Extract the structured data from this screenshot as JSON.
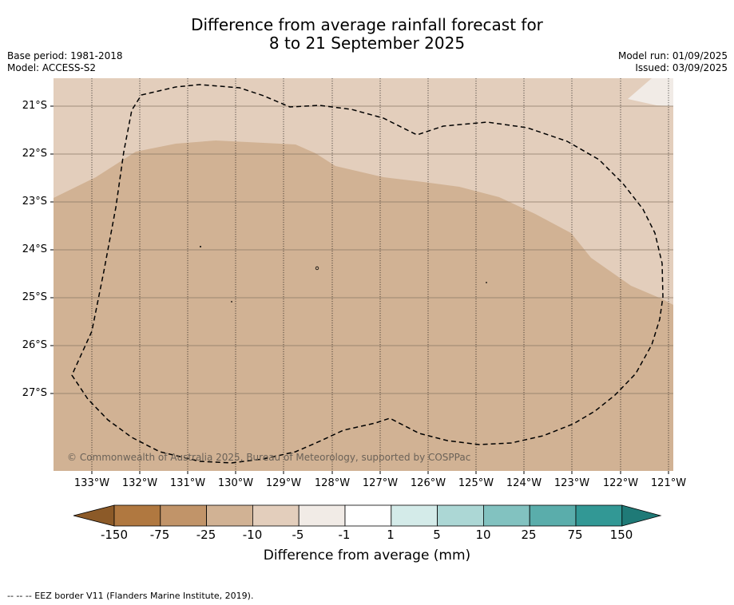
{
  "title": {
    "line1": "Difference from average rainfall forecast for",
    "line2": "8 to 21 September 2025"
  },
  "meta": {
    "base_period": "Base period: 1981-2018",
    "model": "Model: ACCESS-S2",
    "model_run": "Model run: 01/09/2025",
    "issued": "Issued: 03/09/2025"
  },
  "map": {
    "lat_labels": [
      "21°S",
      "22°S",
      "23°S",
      "24°S",
      "25°S",
      "26°S",
      "27°S"
    ],
    "lon_labels": [
      "133°W",
      "132°W",
      "131°W",
      "130°W",
      "129°W",
      "128°W",
      "127°W",
      "126°W",
      "125°W",
      "124°W",
      "123°W",
      "122°W",
      "121°W"
    ],
    "copyright": "© Commonwealth of Australia 2025, Bureau of Meteorology, supported by COSPPac",
    "colors": {
      "band_-25_-10": "#d1b294",
      "band_-10_-5": "#e3cebc",
      "band_-5_-1": "#f1ebe6"
    }
  },
  "colorbar": {
    "ticks": [
      "-150",
      "-75",
      "-25",
      "-10",
      "-5",
      "-1",
      "1",
      "5",
      "10",
      "25",
      "75",
      "150"
    ],
    "colors": [
      "#8c5a28",
      "#b07840",
      "#c19469",
      "#d1b294",
      "#e3cebc",
      "#f1ebe6",
      "#ffffff",
      "#d4ebe9",
      "#acd7d5",
      "#82c2c0",
      "#5aadab",
      "#329895",
      "#1f7a77"
    ],
    "label": "Difference from average (mm)"
  },
  "footer": "--  --  -- EEZ border V11 (Flanders Marine Institute, 2019)."
}
